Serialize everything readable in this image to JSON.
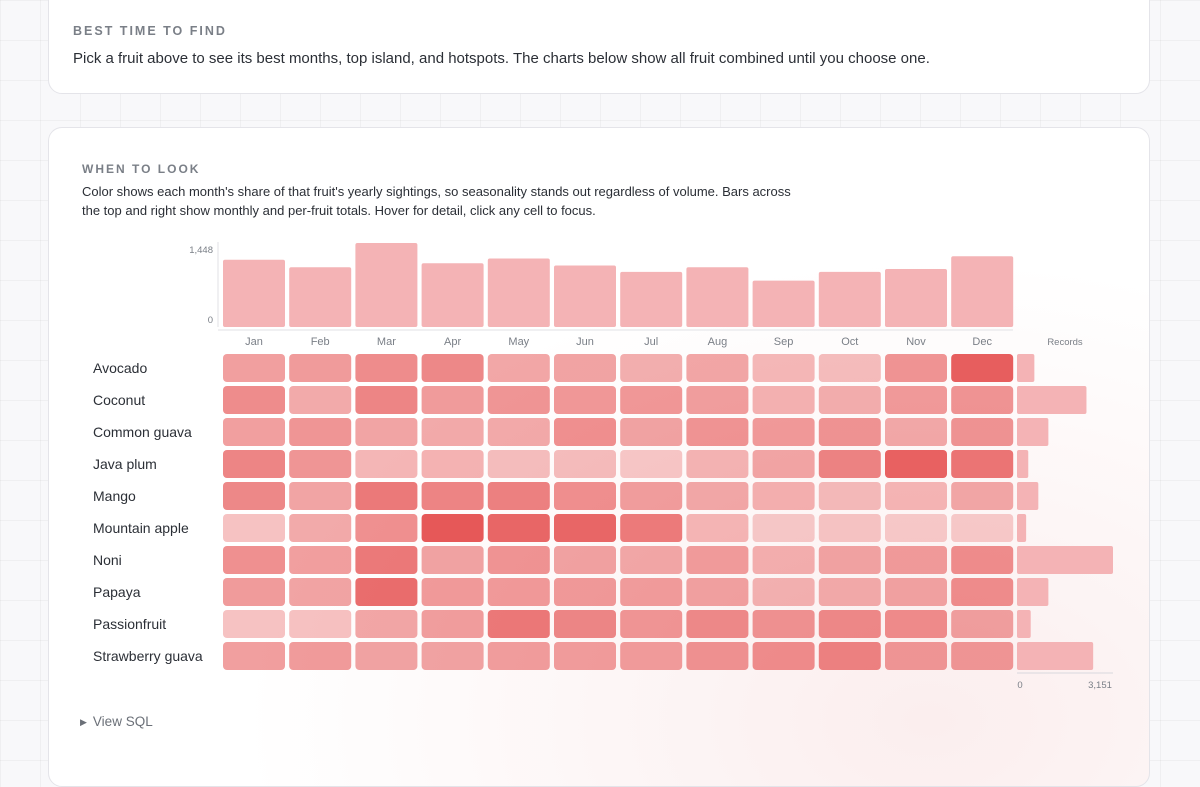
{
  "best_time": {
    "eyebrow": "BEST TIME TO FIND",
    "description": "Pick a fruit above to see its best months, top island, and hotspots. The charts below show all fruit combined until you choose one."
  },
  "when_to_look": {
    "eyebrow": "WHEN TO LOOK",
    "description_line1": "Color shows each month's share of that fruit's yearly sightings, so seasonality stands out regardless of volume. Bars across",
    "description_line2": "the top and right show monthly and per-fruit totals. Hover for detail, click any cell to focus.",
    "view_sql_label": "View SQL"
  },
  "colors": {
    "bar": "#f4b3b5",
    "heat_base": "#e23c3c"
  },
  "chart_data": {
    "type": "heatmap",
    "months": [
      "Jan",
      "Feb",
      "Mar",
      "Apr",
      "May",
      "Jun",
      "Jul",
      "Aug",
      "Sep",
      "Oct",
      "Nov",
      "Dec"
    ],
    "fruits": [
      "Avocado",
      "Coconut",
      "Common guava",
      "Java plum",
      "Mango",
      "Mountain apple",
      "Noni",
      "Papaya",
      "Passionfruit",
      "Strawberry guava"
    ],
    "monthly_totals": [
      1160,
      1030,
      1448,
      1100,
      1180,
      1060,
      950,
      1030,
      800,
      950,
      1000,
      1220
    ],
    "monthly_axis": {
      "min": 0,
      "max": 1448,
      "tick_labels": [
        "1,448",
        "0"
      ]
    },
    "records_label": "Records",
    "fruit_totals": [
      570,
      2280,
      1030,
      370,
      700,
      300,
      3151,
      1030,
      450,
      2500
    ],
    "records_axis": {
      "min": 0,
      "max": 3151,
      "tick_labels": [
        "0",
        "3,151"
      ]
    },
    "intensity": [
      [
        0.45,
        0.48,
        0.58,
        0.6,
        0.4,
        0.42,
        0.35,
        0.4,
        0.28,
        0.25,
        0.52,
        0.88
      ],
      [
        0.58,
        0.38,
        0.62,
        0.48,
        0.52,
        0.5,
        0.5,
        0.45,
        0.32,
        0.35,
        0.48,
        0.52
      ],
      [
        0.45,
        0.52,
        0.42,
        0.38,
        0.38,
        0.55,
        0.42,
        0.52,
        0.48,
        0.52,
        0.38,
        0.52
      ],
      [
        0.62,
        0.52,
        0.3,
        0.32,
        0.25,
        0.25,
        0.18,
        0.3,
        0.4,
        0.62,
        0.85,
        0.72
      ],
      [
        0.6,
        0.42,
        0.7,
        0.62,
        0.65,
        0.55,
        0.45,
        0.38,
        0.32,
        0.25,
        0.28,
        0.38
      ],
      [
        0.22,
        0.38,
        0.55,
        0.92,
        0.82,
        0.82,
        0.68,
        0.28,
        0.15,
        0.18,
        0.14,
        0.14
      ],
      [
        0.55,
        0.45,
        0.7,
        0.42,
        0.52,
        0.42,
        0.38,
        0.45,
        0.32,
        0.4,
        0.45,
        0.55
      ],
      [
        0.48,
        0.42,
        0.78,
        0.48,
        0.48,
        0.48,
        0.45,
        0.42,
        0.3,
        0.35,
        0.4,
        0.55
      ],
      [
        0.22,
        0.22,
        0.4,
        0.45,
        0.7,
        0.6,
        0.5,
        0.58,
        0.52,
        0.58,
        0.55,
        0.42
      ],
      [
        0.45,
        0.48,
        0.42,
        0.42,
        0.45,
        0.45,
        0.45,
        0.52,
        0.55,
        0.62,
        0.48,
        0.48
      ]
    ]
  }
}
